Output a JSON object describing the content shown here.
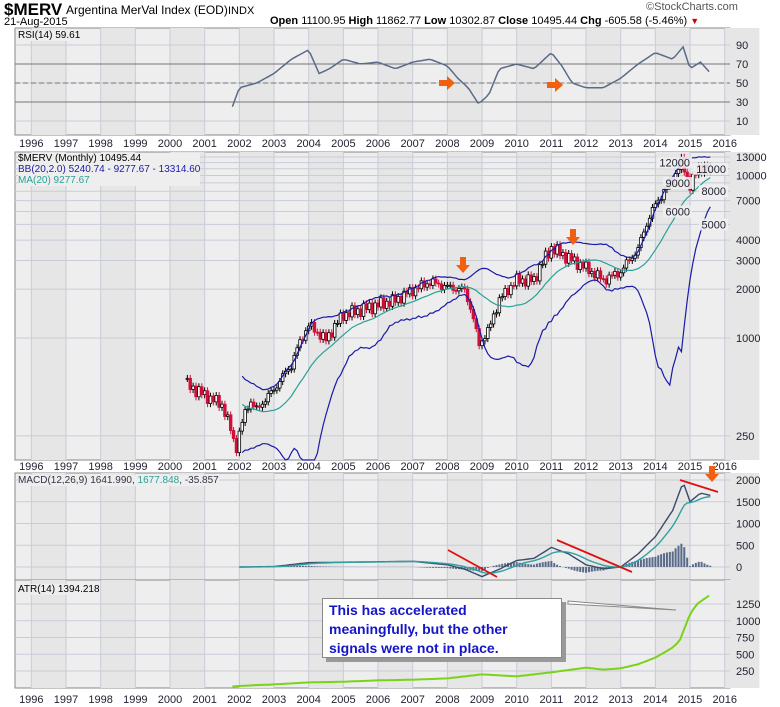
{
  "header": {
    "symbol": "$MERV",
    "name": "Argentina MerVal Index (EOD)",
    "exchange": "INDX",
    "date": "21-Aug-2015",
    "brand": "©StockCharts.com",
    "open_label": "Open",
    "open": "11100.95",
    "high_label": "High",
    "high": "11862.77",
    "low_label": "Low",
    "low": "10302.87",
    "close_label": "Close",
    "close": "10495.44",
    "chg_label": "Chg",
    "chg": "-605.58 (-5.46%)"
  },
  "annotation": "This has accelerated meaningfully, but the other signals were not in place.",
  "colors": {
    "up": "#000000",
    "down": "#d0103a",
    "bb": "#1a1aa8",
    "ma": "#2aa198",
    "macd": "#3a4a6a",
    "signal": "#30a0a0",
    "atr": "#7ad21a",
    "arrow": "#f06010",
    "trend": "#e01010"
  },
  "chart_data": [
    {
      "type": "line",
      "title": "RSI(14) 59.61",
      "ylim": [
        0,
        100
      ],
      "yticks": [
        10,
        30,
        50,
        70,
        90
      ],
      "x": [
        2001.8,
        2002,
        2002.5,
        2003,
        2003.5,
        2004,
        2004.3,
        2004.6,
        2005,
        2005.5,
        2006,
        2006.5,
        2007,
        2007.5,
        2008,
        2008.3,
        2008.6,
        2008.9,
        2009.2,
        2009.5,
        2010,
        2010.5,
        2011,
        2011.3,
        2011.6,
        2012,
        2012.5,
        2013,
        2013.5,
        2014,
        2014.5,
        2014.8,
        2015,
        2015.3,
        2015.6
      ],
      "values": [
        25,
        45,
        50,
        60,
        75,
        85,
        60,
        65,
        75,
        70,
        72,
        65,
        72,
        75,
        68,
        55,
        45,
        28,
        38,
        65,
        70,
        65,
        82,
        68,
        50,
        45,
        45,
        55,
        70,
        82,
        75,
        88,
        65,
        72,
        60
      ]
    },
    {
      "type": "candlestick",
      "title": "$MERV (Monthly) 10495.44",
      "bb_label": "BB(20,2.0) 5240.74 - 9277.67 - 13314.60",
      "ma_label": "MA(20) 9277.67",
      "scale": "log",
      "yticks": [
        250,
        1000,
        2000,
        3000,
        4000,
        5000,
        6000,
        7000,
        8000,
        9000,
        10000,
        11000,
        12000,
        13000
      ],
      "x": [
        2000.5,
        2001,
        2001.5,
        2001.9,
        2002.3,
        2002.5,
        2003,
        2003.5,
        2004,
        2004.5,
        2005,
        2005.5,
        2006,
        2006.5,
        2007,
        2007.5,
        2008,
        2008.5,
        2008.9,
        2009.2,
        2009.5,
        2010,
        2010.5,
        2011,
        2011.5,
        2012,
        2012.5,
        2013,
        2013.5,
        2014,
        2014.5,
        2014.75,
        2015,
        2015.3,
        2015.6
      ],
      "close": [
        514,
        445,
        388,
        205,
        415,
        360,
        480,
        680,
        1200,
        970,
        1390,
        1490,
        1600,
        1710,
        1970,
        2210,
        2060,
        1970,
        905,
        1120,
        1710,
        2270,
        2270,
        3580,
        3100,
        2700,
        2270,
        2550,
        3500,
        6600,
        9400,
        12000,
        8700,
        11500,
        10495
      ]
    },
    {
      "type": "line",
      "title": "MACD(12,26,9)",
      "values_label": "1641.990",
      "signal_label": "1677.848",
      "hist_label": "-35.857",
      "yticks": [
        0,
        500,
        1000,
        1500,
        2000
      ],
      "x": [
        2002,
        2003,
        2004,
        2005,
        2006,
        2007,
        2008,
        2008.5,
        2009,
        2009.5,
        2010,
        2010.5,
        2011,
        2011.5,
        2012,
        2012.5,
        2013,
        2013.5,
        2014,
        2014.5,
        2014.8,
        2015,
        2015.3,
        2015.6
      ],
      "values": [
        0,
        10,
        100,
        110,
        120,
        130,
        50,
        -50,
        -220,
        -50,
        150,
        200,
        450,
        300,
        50,
        -40,
        0,
        300,
        700,
        1300,
        1950,
        1500,
        1700,
        1642
      ]
    },
    {
      "type": "line",
      "title": "ATR(14) 1394.218",
      "yticks": [
        250,
        500,
        750,
        1000,
        1250
      ],
      "x": [
        2001.8,
        2002.5,
        2003,
        2004,
        2005,
        2006,
        2007,
        2008,
        2009,
        2010,
        2011,
        2012,
        2012.5,
        2013,
        2013.5,
        2014,
        2014.5,
        2014.7,
        2015,
        2015.2,
        2015.6
      ],
      "values": [
        20,
        40,
        50,
        80,
        90,
        110,
        120,
        140,
        200,
        170,
        230,
        300,
        270,
        290,
        350,
        450,
        600,
        700,
        1100,
        1250,
        1394
      ]
    }
  ],
  "years": [
    "1996",
    "1997",
    "1998",
    "1999",
    "2000",
    "2001",
    "2002",
    "2003",
    "2004",
    "2005",
    "2006",
    "2007",
    "2008",
    "2009",
    "2010",
    "2011",
    "2012",
    "2013",
    "2014",
    "2015",
    "2016"
  ]
}
